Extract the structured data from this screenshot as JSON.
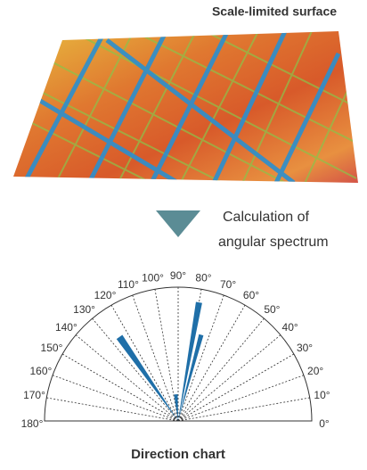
{
  "header": {
    "title": "Scale-limited surface"
  },
  "step": {
    "lines": [
      "Calculation of",
      "angular spectrum"
    ]
  },
  "polar": {
    "angle_labels": [
      "0°",
      "10°",
      "20°",
      "30°",
      "40°",
      "50°",
      "60°",
      "70°",
      "80°",
      "90°",
      "100°",
      "110°",
      "120°",
      "130°",
      "140°",
      "150°",
      "160°",
      "170°",
      "180°"
    ]
  },
  "footer": {
    "caption": "Direction chart"
  }
}
